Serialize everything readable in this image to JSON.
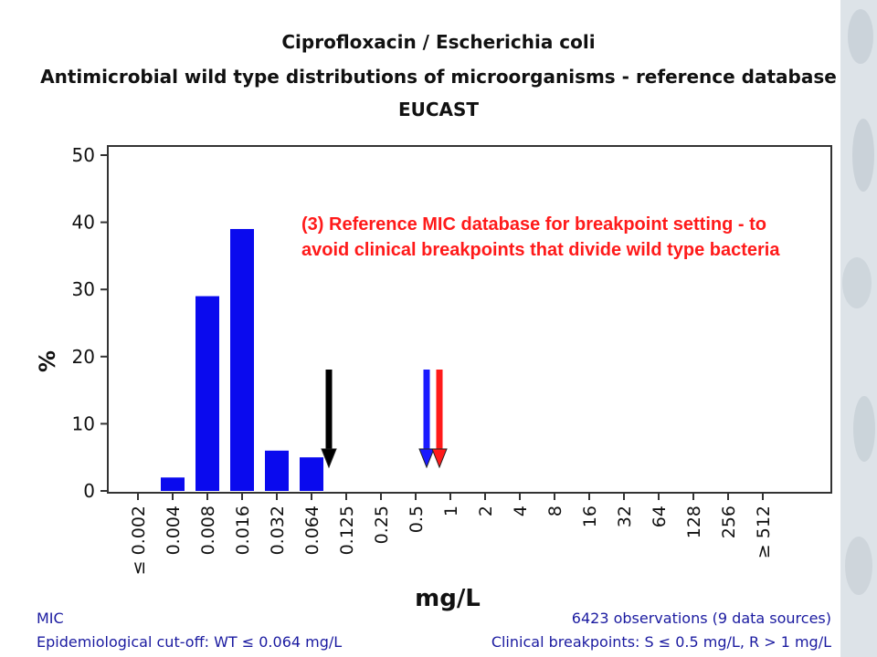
{
  "title_line1": "Ciprofloxacin / Escherichia coli",
  "title_line2": "Antimicrobial wild type distributions of microorganisms - reference database",
  "title_line3": "EUCAST",
  "annotation": "(3) Reference MIC database for breakpoint setting - to avoid clinical breakpoints that divide wild type bacteria",
  "footer": {
    "left1": "MIC",
    "left2": "Epidemiological cut-off: WT ≤ 0.064 mg/L",
    "right1": "6423 observations (9 data sources)",
    "right2": "Clinical breakpoints: S ≤ 0.5 mg/L,  R > 1 mg/L"
  },
  "colors": {
    "bars": "#0a0aee",
    "ecoff_arrow": "#000000",
    "s_arrow": "#1a1aff",
    "r_arrow": "#ff1a1a",
    "annotation": "#ff1a1a",
    "footer": "#1a1aa0"
  },
  "chart_data": {
    "type": "bar",
    "xlabel": "mg/L",
    "ylabel": "%",
    "ylim": [
      0,
      50
    ],
    "yticks": [
      0,
      10,
      20,
      30,
      40,
      50
    ],
    "categories": [
      "≤ 0.002",
      "0.004",
      "0.008",
      "0.016",
      "0.032",
      "0.064",
      "0.125",
      "0.25",
      "0.5",
      "1",
      "2",
      "4",
      "8",
      "16",
      "32",
      "64",
      "128",
      "256",
      "≥ 512"
    ],
    "values": [
      0,
      2,
      29,
      39,
      6,
      5,
      0,
      0,
      0,
      0,
      0,
      0,
      0,
      0,
      0,
      0,
      0,
      0,
      0
    ],
    "grid": false,
    "markers": [
      {
        "name": "Epidemiological cut-off",
        "between": [
          "0.064",
          "0.125"
        ],
        "color": "#000000"
      },
      {
        "name": "S breakpoint",
        "between": [
          "0.5",
          "1"
        ],
        "color": "#1a1aff"
      },
      {
        "name": "R breakpoint",
        "between": [
          "0.5",
          "1"
        ],
        "color": "#ff1a1a"
      }
    ]
  }
}
